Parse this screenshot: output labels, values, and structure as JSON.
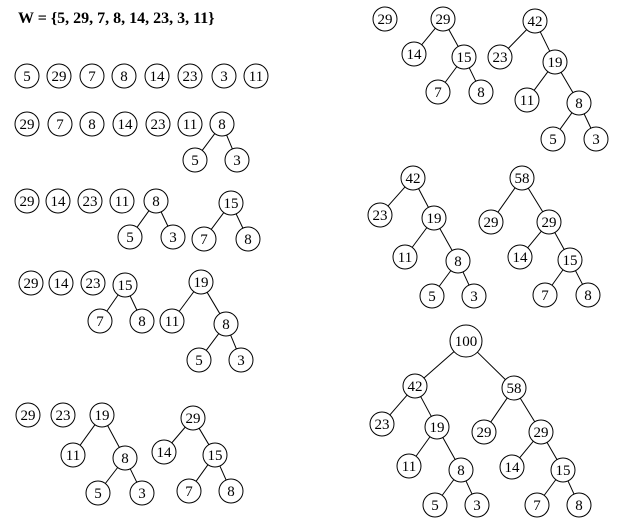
{
  "title": "W = {5,  29,  7,  8,  14,  23,  3,  11}",
  "stages": [
    {
      "id": "stage-1",
      "nodes": [
        {
          "id": "s1-5",
          "label": "5"
        },
        {
          "id": "s1-29",
          "label": "29"
        },
        {
          "id": "s1-7",
          "label": "7"
        },
        {
          "id": "s1-8",
          "label": "8"
        },
        {
          "id": "s1-14",
          "label": "14"
        },
        {
          "id": "s1-23",
          "label": "23"
        },
        {
          "id": "s1-3",
          "label": "3"
        },
        {
          "id": "s1-11",
          "label": "11"
        }
      ],
      "edges": []
    },
    {
      "id": "stage-2",
      "nodes": [
        {
          "id": "s2-29",
          "label": "29"
        },
        {
          "id": "s2-7",
          "label": "7"
        },
        {
          "id": "s2-8",
          "label": "8"
        },
        {
          "id": "s2-14",
          "label": "14"
        },
        {
          "id": "s2-23",
          "label": "23"
        },
        {
          "id": "s2-11",
          "label": "11"
        },
        {
          "id": "s2-8r",
          "label": "8"
        },
        {
          "id": "s2-5",
          "label": "5"
        },
        {
          "id": "s2-3",
          "label": "3"
        }
      ],
      "edges": [
        [
          "s2-8r",
          "s2-5"
        ],
        [
          "s2-8r",
          "s2-3"
        ]
      ]
    },
    {
      "id": "stage-3",
      "nodes": [
        {
          "id": "s3-29",
          "label": "29"
        },
        {
          "id": "s3-14",
          "label": "14"
        },
        {
          "id": "s3-23",
          "label": "23"
        },
        {
          "id": "s3-11",
          "label": "11"
        },
        {
          "id": "s3-8",
          "label": "8"
        },
        {
          "id": "s3-5",
          "label": "5"
        },
        {
          "id": "s3-3",
          "label": "3"
        },
        {
          "id": "s3-15",
          "label": "15"
        },
        {
          "id": "s3-7",
          "label": "7"
        },
        {
          "id": "s3-8b",
          "label": "8"
        }
      ],
      "edges": [
        [
          "s3-8",
          "s3-5"
        ],
        [
          "s3-8",
          "s3-3"
        ],
        [
          "s3-15",
          "s3-7"
        ],
        [
          "s3-15",
          "s3-8b"
        ]
      ]
    },
    {
      "id": "stage-4",
      "nodes": [
        {
          "id": "s4-29",
          "label": "29"
        },
        {
          "id": "s4-14",
          "label": "14"
        },
        {
          "id": "s4-23",
          "label": "23"
        },
        {
          "id": "s4-15",
          "label": "15"
        },
        {
          "id": "s4-7",
          "label": "7"
        },
        {
          "id": "s4-8",
          "label": "8"
        },
        {
          "id": "s4-19",
          "label": "19"
        },
        {
          "id": "s4-11",
          "label": "11"
        },
        {
          "id": "s4-8b",
          "label": "8"
        },
        {
          "id": "s4-5",
          "label": "5"
        },
        {
          "id": "s4-3",
          "label": "3"
        }
      ],
      "edges": [
        [
          "s4-15",
          "s4-7"
        ],
        [
          "s4-15",
          "s4-8"
        ],
        [
          "s4-19",
          "s4-11"
        ],
        [
          "s4-19",
          "s4-8b"
        ],
        [
          "s4-8b",
          "s4-5"
        ],
        [
          "s4-8b",
          "s4-3"
        ]
      ]
    },
    {
      "id": "stage-5",
      "nodes": [
        {
          "id": "s5-29",
          "label": "29"
        },
        {
          "id": "s5-23",
          "label": "23"
        },
        {
          "id": "s5-19",
          "label": "19"
        },
        {
          "id": "s5-11",
          "label": "11"
        },
        {
          "id": "s5-8",
          "label": "8"
        },
        {
          "id": "s5-5",
          "label": "5"
        },
        {
          "id": "s5-3",
          "label": "3"
        },
        {
          "id": "s5-29b",
          "label": "29"
        },
        {
          "id": "s5-14",
          "label": "14"
        },
        {
          "id": "s5-15",
          "label": "15"
        },
        {
          "id": "s5-7",
          "label": "7"
        },
        {
          "id": "s5-8b",
          "label": "8"
        }
      ],
      "edges": [
        [
          "s5-19",
          "s5-11"
        ],
        [
          "s5-19",
          "s5-8"
        ],
        [
          "s5-8",
          "s5-5"
        ],
        [
          "s5-8",
          "s5-3"
        ],
        [
          "s5-29b",
          "s5-14"
        ],
        [
          "s5-29b",
          "s5-15"
        ],
        [
          "s5-15",
          "s5-7"
        ],
        [
          "s5-15",
          "s5-8b"
        ]
      ]
    },
    {
      "id": "stage-6",
      "nodes": [
        {
          "id": "s6-29",
          "label": "29"
        },
        {
          "id": "s6-29b",
          "label": "29"
        },
        {
          "id": "s6-14",
          "label": "14"
        },
        {
          "id": "s6-15",
          "label": "15"
        },
        {
          "id": "s6-7",
          "label": "7"
        },
        {
          "id": "s6-8",
          "label": "8"
        },
        {
          "id": "s6-42",
          "label": "42"
        },
        {
          "id": "s6-23",
          "label": "23"
        },
        {
          "id": "s6-19",
          "label": "19"
        },
        {
          "id": "s6-11",
          "label": "11"
        },
        {
          "id": "s6-8b",
          "label": "8"
        },
        {
          "id": "s6-5",
          "label": "5"
        },
        {
          "id": "s6-3",
          "label": "3"
        }
      ],
      "edges": [
        [
          "s6-29b",
          "s6-14"
        ],
        [
          "s6-29b",
          "s6-15"
        ],
        [
          "s6-15",
          "s6-7"
        ],
        [
          "s6-15",
          "s6-8"
        ],
        [
          "s6-42",
          "s6-23"
        ],
        [
          "s6-42",
          "s6-19"
        ],
        [
          "s6-19",
          "s6-11"
        ],
        [
          "s6-19",
          "s6-8b"
        ],
        [
          "s6-8b",
          "s6-5"
        ],
        [
          "s6-8b",
          "s6-3"
        ]
      ]
    },
    {
      "id": "stage-7",
      "nodes": [
        {
          "id": "s7-42",
          "label": "42"
        },
        {
          "id": "s7-23",
          "label": "23"
        },
        {
          "id": "s7-19",
          "label": "19"
        },
        {
          "id": "s7-11",
          "label": "11"
        },
        {
          "id": "s7-8",
          "label": "8"
        },
        {
          "id": "s7-5",
          "label": "5"
        },
        {
          "id": "s7-3",
          "label": "3"
        },
        {
          "id": "s7-58",
          "label": "58"
        },
        {
          "id": "s7-29",
          "label": "29"
        },
        {
          "id": "s7-29b",
          "label": "29"
        },
        {
          "id": "s7-14",
          "label": "14"
        },
        {
          "id": "s7-15",
          "label": "15"
        },
        {
          "id": "s7-7",
          "label": "7"
        },
        {
          "id": "s7-8b",
          "label": "8"
        }
      ],
      "edges": [
        [
          "s7-42",
          "s7-23"
        ],
        [
          "s7-42",
          "s7-19"
        ],
        [
          "s7-19",
          "s7-11"
        ],
        [
          "s7-19",
          "s7-8"
        ],
        [
          "s7-8",
          "s7-5"
        ],
        [
          "s7-8",
          "s7-3"
        ],
        [
          "s7-58",
          "s7-29"
        ],
        [
          "s7-58",
          "s7-29b"
        ],
        [
          "s7-29b",
          "s7-14"
        ],
        [
          "s7-29b",
          "s7-15"
        ],
        [
          "s7-15",
          "s7-7"
        ],
        [
          "s7-15",
          "s7-8b"
        ]
      ]
    },
    {
      "id": "stage-8",
      "nodes": [
        {
          "id": "s8-100",
          "label": "100"
        },
        {
          "id": "s8-42",
          "label": "42"
        },
        {
          "id": "s8-58",
          "label": "58"
        },
        {
          "id": "s8-23",
          "label": "23"
        },
        {
          "id": "s8-19",
          "label": "19"
        },
        {
          "id": "s8-11",
          "label": "11"
        },
        {
          "id": "s8-8",
          "label": "8"
        },
        {
          "id": "s8-5",
          "label": "5"
        },
        {
          "id": "s8-3",
          "label": "3"
        },
        {
          "id": "s8-29",
          "label": "29"
        },
        {
          "id": "s8-29b",
          "label": "29"
        },
        {
          "id": "s8-14",
          "label": "14"
        },
        {
          "id": "s8-15",
          "label": "15"
        },
        {
          "id": "s8-7",
          "label": "7"
        },
        {
          "id": "s8-8b",
          "label": "8"
        }
      ],
      "edges": [
        [
          "s8-100",
          "s8-42"
        ],
        [
          "s8-100",
          "s8-58"
        ],
        [
          "s8-42",
          "s8-23"
        ],
        [
          "s8-42",
          "s8-19"
        ],
        [
          "s8-19",
          "s8-11"
        ],
        [
          "s8-19",
          "s8-8"
        ],
        [
          "s8-8",
          "s8-5"
        ],
        [
          "s8-8",
          "s8-3"
        ],
        [
          "s8-58",
          "s8-29"
        ],
        [
          "s8-58",
          "s8-29b"
        ],
        [
          "s8-29b",
          "s8-14"
        ],
        [
          "s8-29b",
          "s8-15"
        ],
        [
          "s8-15",
          "s8-7"
        ],
        [
          "s8-15",
          "s8-8b"
        ]
      ]
    }
  ]
}
